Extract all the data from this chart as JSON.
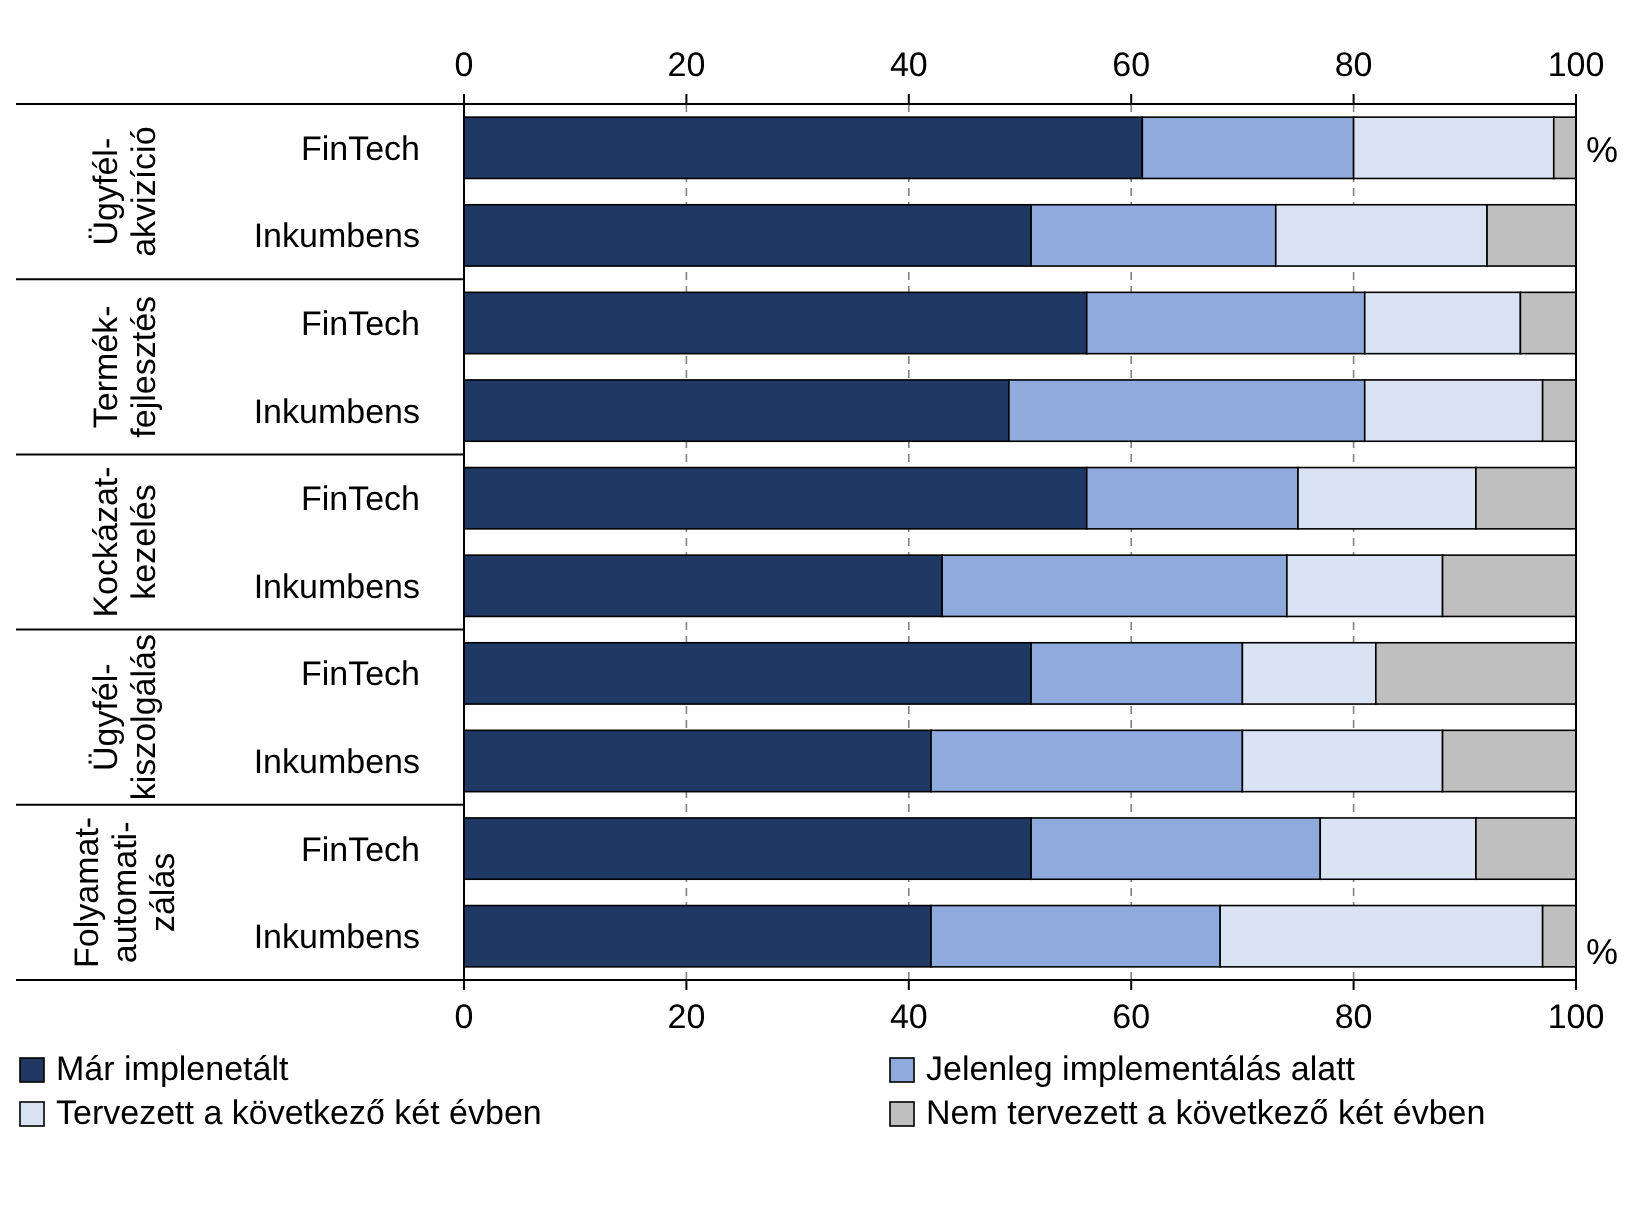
{
  "chart_data": {
    "type": "bar",
    "orientation": "horizontal",
    "stacked": true,
    "categories": [
      "FinTech",
      "Inkumbens",
      "FinTech",
      "Inkumbens",
      "FinTech",
      "Inkumbens",
      "FinTech",
      "Inkumbens",
      "FinTech",
      "Inkumbens"
    ],
    "series": [
      {
        "name": "Már implenetált",
        "color": "#203864",
        "values": [
          61,
          51,
          56,
          49,
          56,
          43,
          51,
          42,
          51,
          42
        ]
      },
      {
        "name": "Jelenleg implementálás alatt",
        "color": "#8faadc",
        "values": [
          19,
          22,
          25,
          32,
          19,
          31,
          19,
          28,
          26,
          26
        ]
      },
      {
        "name": "Tervezett a következő két évben",
        "color": "#dae3f3",
        "values": [
          18,
          19,
          14,
          16,
          16,
          14,
          12,
          18,
          14,
          29
        ]
      },
      {
        "name": "Nem tervezett a következő két évben",
        "color": "#bfbfbf",
        "values": [
          2,
          8,
          5,
          3,
          9,
          12,
          18,
          12,
          9,
          3
        ]
      }
    ],
    "xlim": [
      0,
      100
    ],
    "xticks": [
      0,
      20,
      40,
      60,
      80,
      100
    ],
    "x2lim": [
      0,
      100
    ],
    "x2ticks": [
      0,
      20,
      40,
      60,
      80,
      100
    ],
    "xlabel": "%",
    "x2label": "%",
    "annotations": [
      "Ügyfél-\nakvizíció",
      "Termék-\nfejlesztés",
      "Kockázat-\nkezelés",
      "Ügyfél-\nkiszolgálás",
      "Folyamat-\nautomati-\nzálás"
    ],
    "grid": "x",
    "legend": "bottom"
  }
}
